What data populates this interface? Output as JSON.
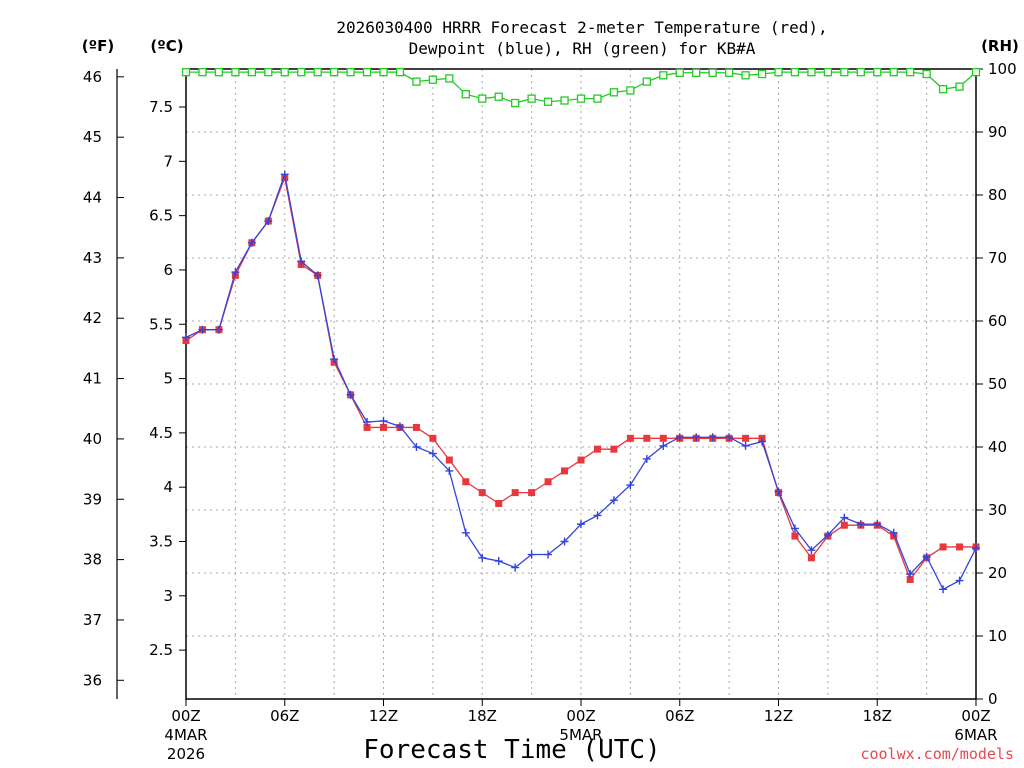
{
  "chart_data": {
    "type": "line",
    "title_line1": "2026030400 HRRR Forecast 2-meter Temperature (red),",
    "title_line2": "Dewpoint (blue), RH (green) for KB#A",
    "xlabel": "Forecast Time (UTC)",
    "credit": "coolwx.com/models",
    "units": {
      "f": "(ºF)",
      "c": "(ºC)",
      "rh": "(RH)"
    },
    "xlim": [
      0,
      48
    ],
    "ylim_c": [
      2.05,
      7.85
    ],
    "ylim_rh": [
      0,
      100
    ],
    "yticks_f": [
      "36",
      "37",
      "38",
      "39",
      "40",
      "41",
      "42",
      "43",
      "44",
      "45",
      "46"
    ],
    "yticks_c": [
      "2.5",
      "3",
      "3.5",
      "4",
      "4.5",
      "5",
      "5.5",
      "6",
      "6.5",
      "7",
      "7.5"
    ],
    "yticks_rh": [
      "0",
      "10",
      "20",
      "30",
      "40",
      "50",
      "60",
      "70",
      "80",
      "90",
      "100"
    ],
    "xticks": [
      {
        "x": 0,
        "label": "00Z",
        "sub1": "4MAR",
        "sub2": "2026"
      },
      {
        "x": 6,
        "label": "06Z"
      },
      {
        "x": 12,
        "label": "12Z"
      },
      {
        "x": 18,
        "label": "18Z"
      },
      {
        "x": 24,
        "label": "00Z",
        "sub1": "5MAR"
      },
      {
        "x": 30,
        "label": "06Z"
      },
      {
        "x": 36,
        "label": "12Z"
      },
      {
        "x": 42,
        "label": "18Z"
      },
      {
        "x": 48,
        "label": "00Z",
        "sub1": "6MAR"
      }
    ],
    "series": [
      {
        "name": "2-meter Temperature",
        "color": "#e8373d",
        "axis": "c",
        "marker": "square",
        "values": [
          5.35,
          5.45,
          5.45,
          5.95,
          6.25,
          6.45,
          6.85,
          6.05,
          5.95,
          5.15,
          4.85,
          4.55,
          4.55,
          4.55,
          4.55,
          4.45,
          4.25,
          4.05,
          3.95,
          3.85,
          3.95,
          3.95,
          4.05,
          4.15,
          4.25,
          4.35,
          4.35,
          4.45,
          4.45,
          4.45,
          4.45,
          4.45,
          4.45,
          4.45,
          4.45,
          4.45,
          3.95,
          3.55,
          3.35,
          3.55,
          3.65,
          3.65,
          3.65,
          3.55,
          3.15,
          3.35,
          3.45,
          3.45,
          3.45
        ]
      },
      {
        "name": "Dewpoint",
        "color": "#3344dd",
        "axis": "c",
        "marker": "plus",
        "values": [
          5.38,
          5.45,
          5.45,
          5.98,
          6.25,
          6.45,
          6.88,
          6.08,
          5.95,
          5.18,
          4.85,
          4.6,
          4.61,
          4.56,
          4.37,
          4.31,
          4.15,
          3.58,
          3.35,
          3.32,
          3.26,
          3.38,
          3.38,
          3.5,
          3.66,
          3.74,
          3.88,
          4.02,
          4.26,
          4.38,
          4.46,
          4.46,
          4.46,
          4.46,
          4.38,
          4.42,
          3.96,
          3.62,
          3.42,
          3.56,
          3.72,
          3.66,
          3.66,
          3.58,
          3.2,
          3.36,
          3.06,
          3.14,
          3.44
        ]
      },
      {
        "name": "RH",
        "color": "#22cc22",
        "axis": "rh",
        "marker": "open-square",
        "values": [
          99.5,
          99.5,
          99.5,
          99.5,
          99.5,
          99.5,
          99.5,
          99.5,
          99.5,
          99.5,
          99.5,
          99.5,
          99.5,
          99.5,
          98,
          98.3,
          98.5,
          96,
          95.3,
          95.6,
          94.6,
          95.3,
          94.8,
          95,
          95.3,
          95.3,
          96.3,
          96.6,
          98,
          99,
          99.4,
          99.4,
          99.4,
          99.4,
          99,
          99.2,
          99.5,
          99.5,
          99.5,
          99.5,
          99.5,
          99.5,
          99.5,
          99.5,
          99.5,
          99.2,
          96.8,
          97.2,
          99.5
        ]
      }
    ]
  }
}
